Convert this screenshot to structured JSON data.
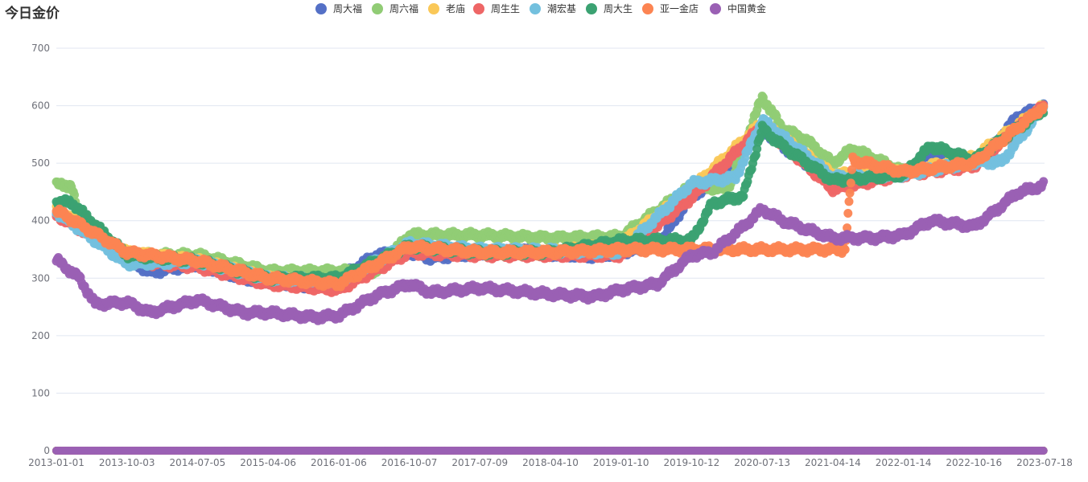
{
  "chart_data": {
    "type": "scatter",
    "title": "今日金价",
    "legend_position": "top-center",
    "grid": true,
    "ylim": [
      0,
      700
    ],
    "yticks": [
      0,
      100,
      200,
      300,
      400,
      500,
      600,
      700
    ],
    "xlim": [
      "2013-01-01",
      "2023-07-18"
    ],
    "xticks": [
      "2013-01-01",
      "2013-10-03",
      "2014-07-05",
      "2015-04-06",
      "2016-01-06",
      "2016-10-07",
      "2017-07-09",
      "2018-04-10",
      "2019-01-10",
      "2019-10-12",
      "2020-07-13",
      "2021-04-14",
      "2022-01-14",
      "2022-10-16",
      "2023-07-18"
    ],
    "series": [
      {
        "name": "周大福",
        "color": "#5470c6",
        "points": [
          [
            "2013-01-01",
            415
          ],
          [
            "2013-04-01",
            395
          ],
          [
            "2013-10-03",
            335
          ],
          [
            "2014-01-01",
            310
          ],
          [
            "2014-07-05",
            325
          ],
          [
            "2015-01-01",
            300
          ],
          [
            "2015-04-06",
            295
          ],
          [
            "2015-10-01",
            285
          ],
          [
            "2016-01-06",
            300
          ],
          [
            "2016-06-01",
            340
          ],
          [
            "2016-10-07",
            345
          ],
          [
            "2017-01-01",
            335
          ],
          [
            "2017-07-09",
            345
          ],
          [
            "2018-01-01",
            348
          ],
          [
            "2018-04-10",
            342
          ],
          [
            "2018-10-01",
            338
          ],
          [
            "2019-01-10",
            345
          ],
          [
            "2019-06-01",
            355
          ],
          [
            "2019-10-12",
            445
          ],
          [
            "2020-01-01",
            460
          ],
          [
            "2020-05-01",
            520
          ],
          [
            "2020-07-13",
            560
          ],
          [
            "2020-10-01",
            530
          ],
          [
            "2021-01-01",
            500
          ],
          [
            "2021-04-14",
            470
          ],
          [
            "2021-10-01",
            480
          ],
          [
            "2022-01-14",
            480
          ],
          [
            "2022-05-01",
            520
          ],
          [
            "2022-10-16",
            500
          ],
          [
            "2023-01-01",
            530
          ],
          [
            "2023-04-01",
            580
          ],
          [
            "2023-07-18",
            600
          ]
        ]
      },
      {
        "name": "周六福",
        "color": "#91cc75",
        "points": [
          [
            "2013-01-01",
            462
          ],
          [
            "2013-03-01",
            462
          ],
          [
            "2013-04-01",
            400
          ],
          [
            "2013-10-03",
            340
          ],
          [
            "2014-07-05",
            340
          ],
          [
            "2015-04-06",
            312
          ],
          [
            "2016-01-06",
            312
          ],
          [
            "2016-06-01",
            312
          ],
          [
            "2016-10-07",
            375
          ],
          [
            "2017-07-09",
            375
          ],
          [
            "2018-04-10",
            370
          ],
          [
            "2019-01-10",
            372
          ],
          [
            "2019-10-12",
            460
          ],
          [
            "2020-03-01",
            455
          ],
          [
            "2020-07-13",
            615
          ],
          [
            "2020-10-01",
            560
          ],
          [
            "2021-01-01",
            540
          ],
          [
            "2021-04-14",
            500
          ],
          [
            "2021-07-01",
            525
          ],
          [
            "2022-01-14",
            485
          ],
          [
            "2022-10-16",
            505
          ],
          [
            "2023-07-18",
            600
          ]
        ]
      },
      {
        "name": "老庙",
        "color": "#fac858",
        "points": [
          [
            "2013-01-01",
            420
          ],
          [
            "2013-10-03",
            345
          ],
          [
            "2014-07-05",
            330
          ],
          [
            "2015-04-06",
            300
          ],
          [
            "2016-01-06",
            290
          ],
          [
            "2016-10-07",
            350
          ],
          [
            "2017-07-09",
            345
          ],
          [
            "2018-04-10",
            345
          ],
          [
            "2019-01-10",
            360
          ],
          [
            "2019-10-12",
            455
          ],
          [
            "2020-07-13",
            570
          ],
          [
            "2021-04-14",
            480
          ],
          [
            "2022-01-14",
            485
          ],
          [
            "2022-10-16",
            510
          ],
          [
            "2023-07-18",
            600
          ]
        ]
      },
      {
        "name": "周生生",
        "color": "#ee6666",
        "points": [
          [
            "2013-01-01",
            410
          ],
          [
            "2013-06-01",
            370
          ],
          [
            "2013-10-03",
            330
          ],
          [
            "2014-07-05",
            320
          ],
          [
            "2015-04-06",
            290
          ],
          [
            "2016-01-06",
            280
          ],
          [
            "2016-10-07",
            345
          ],
          [
            "2017-07-09",
            340
          ],
          [
            "2018-04-10",
            340
          ],
          [
            "2019-01-10",
            340
          ],
          [
            "2019-10-12",
            440
          ],
          [
            "2020-07-13",
            565
          ],
          [
            "2021-04-14",
            455
          ],
          [
            "2022-01-14",
            480
          ],
          [
            "2022-10-16",
            495
          ],
          [
            "2023-07-18",
            600
          ]
        ]
      },
      {
        "name": "潮宏基",
        "color": "#73c0de",
        "points": [
          [
            "2013-01-01",
            415
          ],
          [
            "2013-10-03",
            325
          ],
          [
            "2014-07-05",
            330
          ],
          [
            "2015-04-06",
            300
          ],
          [
            "2016-01-06",
            295
          ],
          [
            "2016-10-07",
            360
          ],
          [
            "2017-07-09",
            350
          ],
          [
            "2018-04-10",
            348
          ],
          [
            "2019-01-10",
            345
          ],
          [
            "2019-10-12",
            465
          ],
          [
            "2020-04-01",
            475
          ],
          [
            "2020-07-13",
            575
          ],
          [
            "2021-04-14",
            475
          ],
          [
            "2022-01-14",
            480
          ],
          [
            "2022-10-16",
            502
          ],
          [
            "2023-02-01",
            502
          ],
          [
            "2023-07-18",
            600
          ]
        ]
      },
      {
        "name": "周大生",
        "color": "#3ba272",
        "points": [
          [
            "2013-01-01",
            432
          ],
          [
            "2013-03-01",
            432
          ],
          [
            "2013-10-03",
            340
          ],
          [
            "2014-07-05",
            330
          ],
          [
            "2015-04-06",
            300
          ],
          [
            "2016-01-06",
            300
          ],
          [
            "2016-10-07",
            355
          ],
          [
            "2017-07-09",
            345
          ],
          [
            "2018-04-10",
            345
          ],
          [
            "2019-01-10",
            365
          ],
          [
            "2019-10-12",
            366
          ],
          [
            "2020-01-01",
            430
          ],
          [
            "2020-05-01",
            443
          ],
          [
            "2020-07-13",
            560
          ],
          [
            "2020-10-01",
            530
          ],
          [
            "2021-04-14",
            470
          ],
          [
            "2022-01-14",
            480
          ],
          [
            "2022-05-01",
            530
          ],
          [
            "2022-10-16",
            505
          ],
          [
            "2023-07-18",
            595
          ]
        ]
      },
      {
        "name": "亚一金店",
        "color": "#fc8452",
        "points": [
          [
            "2013-01-01",
            418
          ],
          [
            "2013-10-03",
            345
          ],
          [
            "2014-07-05",
            330
          ],
          [
            "2015-04-06",
            300
          ],
          [
            "2016-01-06",
            290
          ],
          [
            "2016-10-07",
            355
          ],
          [
            "2017-07-09",
            345
          ],
          [
            "2018-04-10",
            345
          ],
          [
            "2019-01-10",
            350
          ],
          [
            "2019-10-12",
            350
          ],
          [
            "2020-07-13",
            350
          ],
          [
            "2021-04-14",
            350
          ],
          [
            "2021-06-01",
            350
          ],
          [
            "2021-07-01",
            505
          ],
          [
            "2022-01-14",
            485
          ],
          [
            "2022-10-16",
            500
          ],
          [
            "2023-07-18",
            600
          ]
        ]
      },
      {
        "name": "中国黄金",
        "color": "#9a60b4",
        "points": [
          [
            "2013-01-01",
            332
          ],
          [
            "2013-04-01",
            300
          ],
          [
            "2013-06-01",
            255
          ],
          [
            "2013-10-03",
            258
          ],
          [
            "2014-01-01",
            240
          ],
          [
            "2014-07-05",
            262
          ],
          [
            "2015-01-01",
            240
          ],
          [
            "2015-04-06",
            240
          ],
          [
            "2015-10-01",
            232
          ],
          [
            "2016-01-06",
            235
          ],
          [
            "2016-06-01",
            270
          ],
          [
            "2016-10-07",
            290
          ],
          [
            "2017-01-01",
            275
          ],
          [
            "2017-07-09",
            283
          ],
          [
            "2018-01-01",
            276
          ],
          [
            "2018-04-10",
            272
          ],
          [
            "2018-10-01",
            268
          ],
          [
            "2019-01-10",
            280
          ],
          [
            "2019-06-01",
            290
          ],
          [
            "2019-10-12",
            340
          ],
          [
            "2020-01-01",
            345
          ],
          [
            "2020-05-01",
            390
          ],
          [
            "2020-07-13",
            420
          ],
          [
            "2020-10-01",
            400
          ],
          [
            "2021-01-01",
            385
          ],
          [
            "2021-04-14",
            370
          ],
          [
            "2021-10-01",
            370
          ],
          [
            "2022-01-14",
            375
          ],
          [
            "2022-05-01",
            400
          ],
          [
            "2022-10-16",
            390
          ],
          [
            "2023-01-01",
            415
          ],
          [
            "2023-04-01",
            448
          ],
          [
            "2023-07-18",
            462
          ]
        ]
      }
    ]
  }
}
